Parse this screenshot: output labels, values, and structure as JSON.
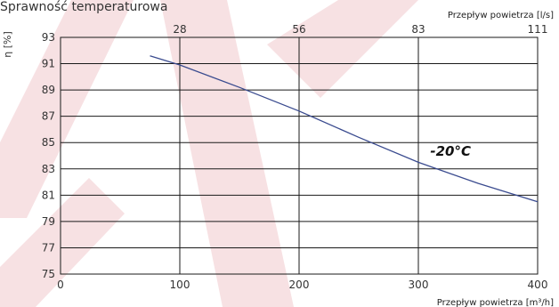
{
  "colors": {
    "line": "#3a4b8f",
    "grid": "#1a1a1a",
    "watermark": "#e8b0b5",
    "text": "#333333"
  },
  "chart_data": {
    "type": "line",
    "title": "Sprawność temperaturowa",
    "ylabel": "η [%]",
    "xlabel": "Przepływ powietrza [m³/h]",
    "x2label": "Przepływ powietrza [l/s]",
    "xlim": [
      0,
      400
    ],
    "ylim": [
      75,
      93
    ],
    "x_ticks": [
      0,
      100,
      200,
      300,
      400
    ],
    "y_ticks": [
      75,
      77,
      79,
      81,
      83,
      85,
      87,
      89,
      91,
      93
    ],
    "x2_ticks": [
      {
        "label": "28",
        "at": 100
      },
      {
        "label": "56",
        "at": 200
      },
      {
        "label": "83",
        "at": 300
      },
      {
        "label": "111",
        "at": 400
      }
    ],
    "grid": true,
    "annotation": {
      "text": "-20°C",
      "x": 310,
      "y": 84
    },
    "series": [
      {
        "name": "-20°C",
        "x": [
          75,
          100,
          150,
          200,
          250,
          300,
          350,
          400
        ],
        "y": [
          91.6,
          90.9,
          89.2,
          87.4,
          85.4,
          83.5,
          81.9,
          80.5
        ]
      }
    ]
  }
}
